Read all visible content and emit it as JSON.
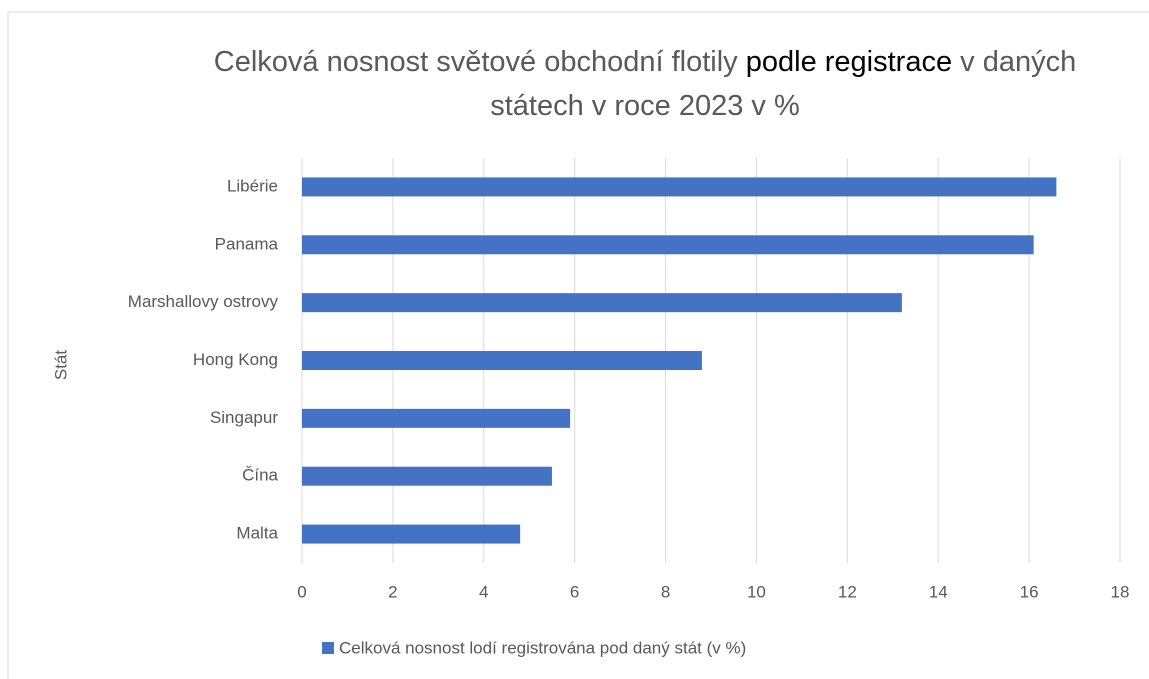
{
  "chart_data": {
    "type": "bar",
    "orientation": "horizontal",
    "title": [
      "Celková nosnost světové obchodní flotily ",
      "podle registrace",
      " v daných státech v roce 2023 v %"
    ],
    "y_label": "Stát",
    "categories": [
      "Libérie",
      "Panama",
      "Marshallovy ostrovy",
      "Hong Kong",
      "Singapur",
      "Čína",
      "Malta"
    ],
    "series": [
      {
        "name": "Celková nosnost lodí registrována pod daný stát (v %)",
        "color": "#4472c4",
        "values": [
          16.6,
          16.1,
          13.2,
          8.8,
          5.9,
          5.5,
          4.8
        ]
      }
    ],
    "xlim": [
      0,
      18
    ],
    "xticks": [
      0,
      2,
      4,
      6,
      8,
      10,
      12,
      14,
      16,
      18
    ],
    "grid": true,
    "legend": "bottom"
  }
}
